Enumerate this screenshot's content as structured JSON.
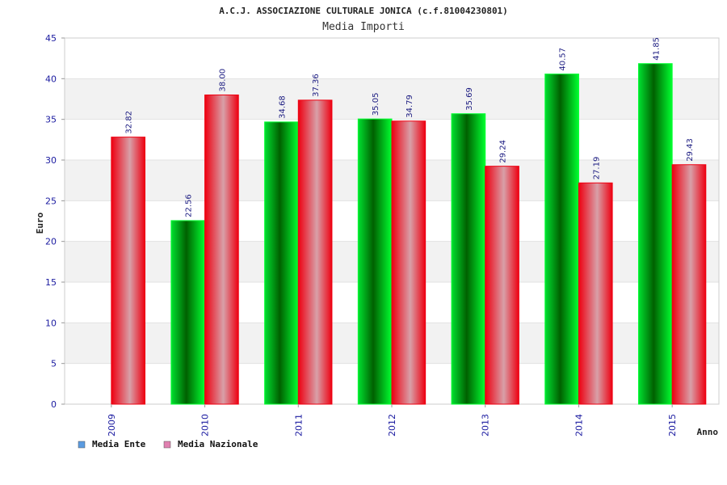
{
  "colors": {
    "ente_dark": "#006a00",
    "ente_light": "#00ff30",
    "nazionale_dark": "#ee0011",
    "nazionale_light": "#d8a0a8",
    "legend_ente": "#5b9be0",
    "legend_nazionale": "#e080b0",
    "band": "#f2f2f2",
    "text_blue": "#1a1aa0"
  },
  "chart_data": {
    "type": "bar",
    "title": "A.C.J. ASSOCIAZIONE CULTURALE JONICA (c.f.81004230801)",
    "subtitle": "Media Importi",
    "xlabel": "Anno",
    "ylabel": "Euro",
    "ylim": [
      0,
      45
    ],
    "yticks": [
      "0",
      "5",
      "10",
      "15",
      "20",
      "25",
      "30",
      "35",
      "40",
      "45"
    ],
    "categories": [
      "2009",
      "2010",
      "2011",
      "2012",
      "2013",
      "2014",
      "2015"
    ],
    "series": [
      {
        "name": "Media Ente",
        "values": [
          null,
          22.56,
          34.68,
          35.05,
          35.69,
          40.57,
          41.85
        ],
        "labels": [
          "",
          "22.56",
          "34.68",
          "35.05",
          "35.69",
          "40.57",
          "41.85"
        ]
      },
      {
        "name": "Media Nazionale",
        "values": [
          32.82,
          38.0,
          37.36,
          34.79,
          29.24,
          27.19,
          29.43
        ],
        "labels": [
          "32.82",
          "38.00",
          "37.36",
          "34.79",
          "29.24",
          "27.19",
          "29.43"
        ]
      }
    ],
    "grid": true,
    "legend": "bottom-left"
  }
}
